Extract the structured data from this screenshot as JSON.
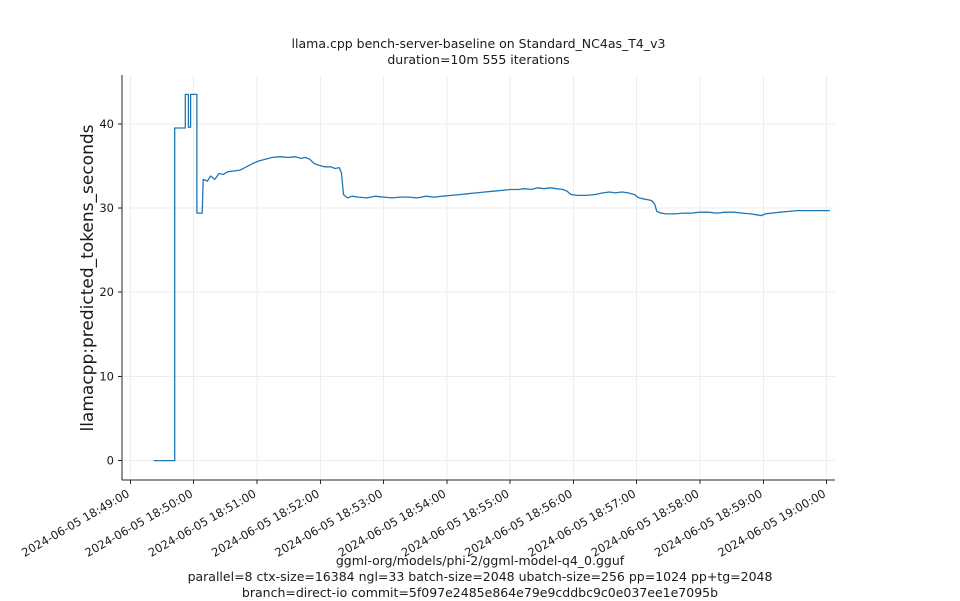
{
  "title": {
    "line1": "llama.cpp bench-server-baseline on Standard_NC4as_T4_v3",
    "line2": "duration=10m 555 iterations"
  },
  "ylabel": "llamacpp:predicted_tokens_seconds",
  "caption": {
    "line1": "ggml-org/models/phi-2/ggml-model-q4_0.gguf",
    "line2": "parallel=8 ctx-size=16384 ngl=33 batch-size=2048 ubatch-size=256 pp=1024 pp+tg=2048",
    "line3": "branch=direct-io commit=5f097e2485e864e79e9cddbc9c0e037ee1e7095b"
  },
  "chart_data": {
    "type": "line",
    "title": "llama.cpp bench-server-baseline on Standard_NC4as_T4_v3\nduration=10m 555 iterations",
    "ylabel": "llamacpp:predicted_tokens_seconds",
    "xlabel": "",
    "line_color": "#1f77b4",
    "grid": true,
    "legend": "none",
    "x_unit": "seconds since 2024-06-05 18:49:00",
    "xlim": [
      -8,
      668
    ],
    "ylim": [
      -2.3,
      45.8
    ],
    "y_ticks": [
      0,
      10,
      20,
      30,
      40
    ],
    "x_ticks": [
      {
        "t": 0,
        "label": "2024-06-05 18:49:00"
      },
      {
        "t": 60,
        "label": "2024-06-05 18:50:00"
      },
      {
        "t": 120,
        "label": "2024-06-05 18:51:00"
      },
      {
        "t": 180,
        "label": "2024-06-05 18:52:00"
      },
      {
        "t": 240,
        "label": "2024-06-05 18:53:00"
      },
      {
        "t": 300,
        "label": "2024-06-05 18:54:00"
      },
      {
        "t": 360,
        "label": "2024-06-05 18:55:00"
      },
      {
        "t": 420,
        "label": "2024-06-05 18:56:00"
      },
      {
        "t": 480,
        "label": "2024-06-05 18:57:00"
      },
      {
        "t": 540,
        "label": "2024-06-05 18:58:00"
      },
      {
        "t": 600,
        "label": "2024-06-05 18:59:00"
      },
      {
        "t": 660,
        "label": "2024-06-05 19:00:00"
      }
    ],
    "points": [
      [
        22,
        0
      ],
      [
        42,
        0
      ],
      [
        42,
        39.5
      ],
      [
        52,
        39.5
      ],
      [
        52,
        43.5
      ],
      [
        55,
        43.5
      ],
      [
        55,
        39.6
      ],
      [
        57,
        39.6
      ],
      [
        57,
        43.5
      ],
      [
        63,
        43.5
      ],
      [
        63,
        29.4
      ],
      [
        68,
        29.4
      ],
      [
        69,
        33.4
      ],
      [
        73,
        33.2
      ],
      [
        76,
        33.8
      ],
      [
        80,
        33.4
      ],
      [
        84,
        34.1
      ],
      [
        88,
        34.0
      ],
      [
        92,
        34.3
      ],
      [
        98,
        34.4
      ],
      [
        104,
        34.5
      ],
      [
        110,
        34.9
      ],
      [
        116,
        35.3
      ],
      [
        122,
        35.6
      ],
      [
        128,
        35.8
      ],
      [
        134,
        36.0
      ],
      [
        142,
        36.1
      ],
      [
        150,
        36.0
      ],
      [
        156,
        36.1
      ],
      [
        162,
        35.9
      ],
      [
        166,
        36.0
      ],
      [
        170,
        35.8
      ],
      [
        174,
        35.3
      ],
      [
        178,
        35.1
      ],
      [
        184,
        34.9
      ],
      [
        190,
        34.9
      ],
      [
        194,
        34.7
      ],
      [
        198,
        34.8
      ],
      [
        200,
        34.2
      ],
      [
        202,
        31.6
      ],
      [
        206,
        31.2
      ],
      [
        210,
        31.4
      ],
      [
        216,
        31.3
      ],
      [
        224,
        31.2
      ],
      [
        232,
        31.4
      ],
      [
        240,
        31.3
      ],
      [
        248,
        31.2
      ],
      [
        256,
        31.3
      ],
      [
        264,
        31.3
      ],
      [
        272,
        31.2
      ],
      [
        280,
        31.4
      ],
      [
        288,
        31.3
      ],
      [
        296,
        31.4
      ],
      [
        304,
        31.5
      ],
      [
        312,
        31.6
      ],
      [
        320,
        31.7
      ],
      [
        328,
        31.8
      ],
      [
        336,
        31.9
      ],
      [
        344,
        32.0
      ],
      [
        352,
        32.1
      ],
      [
        360,
        32.2
      ],
      [
        368,
        32.2
      ],
      [
        374,
        32.3
      ],
      [
        380,
        32.2
      ],
      [
        386,
        32.4
      ],
      [
        392,
        32.3
      ],
      [
        398,
        32.4
      ],
      [
        404,
        32.3
      ],
      [
        410,
        32.2
      ],
      [
        414,
        32.0
      ],
      [
        418,
        31.6
      ],
      [
        424,
        31.5
      ],
      [
        432,
        31.5
      ],
      [
        440,
        31.6
      ],
      [
        448,
        31.8
      ],
      [
        454,
        31.9
      ],
      [
        460,
        31.8
      ],
      [
        466,
        31.9
      ],
      [
        472,
        31.8
      ],
      [
        478,
        31.6
      ],
      [
        482,
        31.2
      ],
      [
        486,
        31.1
      ],
      [
        490,
        31.0
      ],
      [
        494,
        30.9
      ],
      [
        497,
        30.5
      ],
      [
        499,
        29.6
      ],
      [
        503,
        29.4
      ],
      [
        508,
        29.3
      ],
      [
        516,
        29.3
      ],
      [
        524,
        29.4
      ],
      [
        532,
        29.4
      ],
      [
        540,
        29.5
      ],
      [
        548,
        29.5
      ],
      [
        556,
        29.4
      ],
      [
        564,
        29.5
      ],
      [
        572,
        29.5
      ],
      [
        580,
        29.4
      ],
      [
        588,
        29.3
      ],
      [
        594,
        29.2
      ],
      [
        598,
        29.1
      ],
      [
        602,
        29.3
      ],
      [
        608,
        29.4
      ],
      [
        616,
        29.5
      ],
      [
        624,
        29.6
      ],
      [
        632,
        29.7
      ],
      [
        640,
        29.7
      ],
      [
        652,
        29.7
      ],
      [
        663,
        29.7
      ]
    ]
  }
}
